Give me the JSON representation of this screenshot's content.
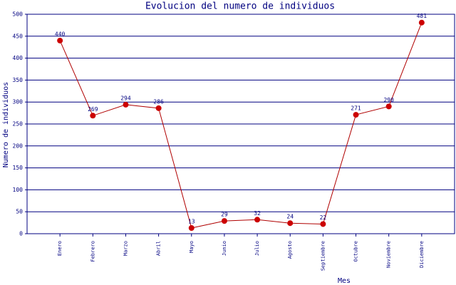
{
  "chart_data": {
    "type": "line",
    "title": "Evolucion del numero de individuos",
    "x_label": "Mes",
    "y_label": "Numero de individuos",
    "categories": [
      "Enero",
      "Febrero",
      "Marzo",
      "Abril",
      "Mayo",
      "Junio",
      "Julio",
      "Agosto",
      "Septiembre",
      "Octubre",
      "Noviembre",
      "Diciembre"
    ],
    "values": [
      440,
      269,
      294,
      286,
      13,
      29,
      32,
      24,
      22,
      271,
      290,
      481
    ],
    "color": "#b00000",
    "marker_color": "#cc0000",
    "grid_color": "#000080",
    "ylim": [
      0,
      500
    ],
    "yticks": [
      0,
      50,
      100,
      150,
      200,
      250,
      300,
      350,
      400,
      450,
      500
    ],
    "grid": true
  }
}
